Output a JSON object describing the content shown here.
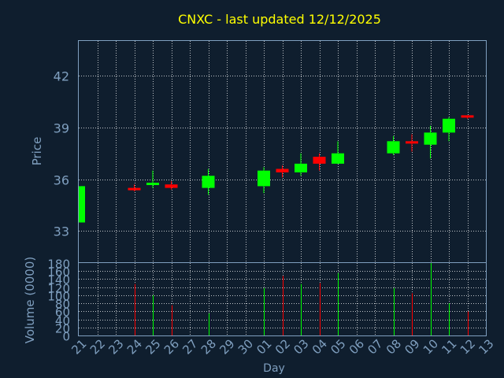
{
  "colors": {
    "background": "#0f1e2e",
    "title": "#ffff00",
    "axis_text": "#7f9fbf",
    "grid": "#ffffff",
    "frame": "#7f9fbf",
    "up": "#00ff00",
    "down": "#ff0000"
  },
  "chart_data": [
    {
      "type": "candlestick",
      "title": "CNXC - last updated 12/12/2025",
      "ylabel": "Price",
      "ylim": [
        31.2,
        44.0
      ],
      "yticks": [
        33,
        36,
        39,
        42
      ],
      "grid": true,
      "x_ticks": [
        "21",
        "22",
        "23",
        "24",
        "25",
        "26",
        "27",
        "28",
        "29",
        "30",
        "01",
        "02",
        "03",
        "04",
        "05",
        "06",
        "07",
        "08",
        "09",
        "10",
        "11",
        "12",
        "13"
      ],
      "candles": [
        {
          "day": "21",
          "open": 33.5,
          "high": 35.6,
          "low": 33.5,
          "close": 35.6
        },
        {
          "day": "24",
          "open": 35.5,
          "high": 35.7,
          "low": 35.3,
          "close": 35.4
        },
        {
          "day": "25",
          "open": 35.7,
          "high": 36.5,
          "low": 35.5,
          "close": 35.8
        },
        {
          "day": "26",
          "open": 35.7,
          "high": 35.9,
          "low": 35.4,
          "close": 35.5
        },
        {
          "day": "28",
          "open": 35.5,
          "high": 36.6,
          "low": 35.1,
          "close": 36.2
        },
        {
          "day": "01",
          "open": 35.6,
          "high": 36.7,
          "low": 35.2,
          "close": 36.5
        },
        {
          "day": "02",
          "open": 36.6,
          "high": 36.8,
          "low": 36.1,
          "close": 36.4
        },
        {
          "day": "03",
          "open": 36.4,
          "high": 37.5,
          "low": 36.2,
          "close": 36.9
        },
        {
          "day": "04",
          "open": 37.3,
          "high": 37.5,
          "low": 36.5,
          "close": 36.9
        },
        {
          "day": "05",
          "open": 36.9,
          "high": 38.2,
          "low": 36.9,
          "close": 37.5
        },
        {
          "day": "08",
          "open": 37.5,
          "high": 38.5,
          "low": 37.4,
          "close": 38.2
        },
        {
          "day": "09",
          "open": 38.2,
          "high": 38.6,
          "low": 37.6,
          "close": 38.1
        },
        {
          "day": "10",
          "open": 38.0,
          "high": 39.1,
          "low": 37.2,
          "close": 38.7
        },
        {
          "day": "11",
          "open": 38.7,
          "high": 39.6,
          "low": 38.2,
          "close": 39.5
        },
        {
          "day": "12",
          "open": 39.7,
          "high": 39.7,
          "low": 39.5,
          "close": 39.6
        }
      ]
    },
    {
      "type": "bar",
      "ylabel": "Volume (0000)",
      "xlabel": "Day",
      "ylim": [
        0,
        180
      ],
      "yticks": [
        0,
        20,
        40,
        60,
        80,
        100,
        120,
        140,
        160,
        180
      ],
      "grid": true,
      "x_ticks": [
        "21",
        "22",
        "23",
        "24",
        "25",
        "26",
        "27",
        "28",
        "29",
        "30",
        "01",
        "02",
        "03",
        "04",
        "05",
        "06",
        "07",
        "08",
        "09",
        "10",
        "11",
        "12",
        "13"
      ],
      "bars": [
        {
          "day": "24",
          "value": 128,
          "direction": "down"
        },
        {
          "day": "25",
          "value": 100,
          "direction": "up"
        },
        {
          "day": "26",
          "value": 75,
          "direction": "down"
        },
        {
          "day": "28",
          "value": 55,
          "direction": "up"
        },
        {
          "day": "01",
          "value": 118,
          "direction": "up"
        },
        {
          "day": "02",
          "value": 148,
          "direction": "down"
        },
        {
          "day": "03",
          "value": 128,
          "direction": "up"
        },
        {
          "day": "04",
          "value": 130,
          "direction": "down"
        },
        {
          "day": "05",
          "value": 155,
          "direction": "up"
        },
        {
          "day": "08",
          "value": 118,
          "direction": "up"
        },
        {
          "day": "09",
          "value": 105,
          "direction": "down"
        },
        {
          "day": "10",
          "value": 180,
          "direction": "up"
        },
        {
          "day": "11",
          "value": 80,
          "direction": "up"
        },
        {
          "day": "12",
          "value": 60,
          "direction": "down"
        }
      ]
    }
  ]
}
